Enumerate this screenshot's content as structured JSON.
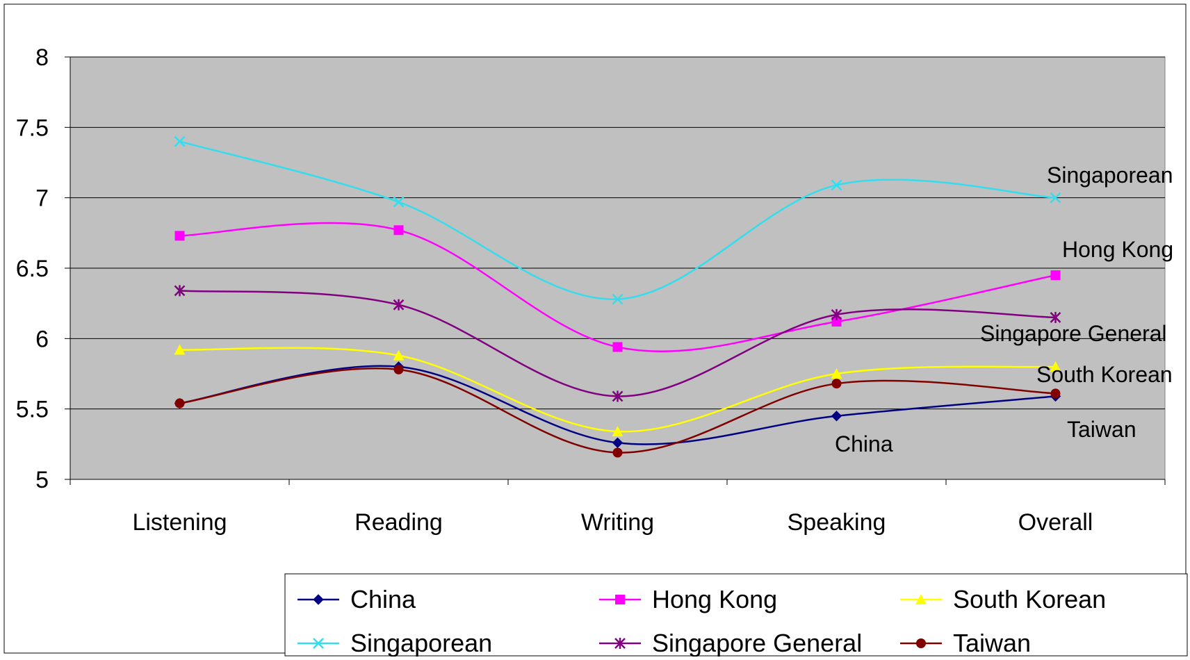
{
  "chart_data": {
    "type": "line",
    "title": "",
    "xlabel": "",
    "ylabel": "",
    "categories": [
      "Listening",
      "Reading",
      "Writing",
      "Speaking",
      "Overall"
    ],
    "ylim": [
      5,
      8
    ],
    "yticks": [
      "5",
      "5.5",
      "6",
      "6.5",
      "7",
      "7.5",
      "8"
    ],
    "grid": true,
    "smooth": true,
    "legend_position": "bottom",
    "series": [
      {
        "name": "China",
        "values": [
          5.54,
          5.8,
          5.26,
          5.45,
          5.59
        ],
        "color": "#000080",
        "marker": "diamond"
      },
      {
        "name": "Hong Kong",
        "values": [
          6.73,
          6.77,
          5.94,
          6.12,
          6.45
        ],
        "color": "#ff00ff",
        "marker": "square"
      },
      {
        "name": "South Korean",
        "values": [
          5.92,
          5.88,
          5.34,
          5.75,
          5.8
        ],
        "color": "#ffff00",
        "marker": "triangle"
      },
      {
        "name": "Singaporean",
        "values": [
          7.4,
          6.97,
          6.28,
          7.09,
          7.0
        ],
        "color": "#33ddee",
        "marker": "x"
      },
      {
        "name": "Singapore General",
        "values": [
          6.34,
          6.24,
          5.59,
          6.17,
          6.15
        ],
        "color": "#800080",
        "marker": "star"
      },
      {
        "name": "Taiwan",
        "values": [
          5.54,
          5.78,
          5.19,
          5.68,
          5.61
        ],
        "color": "#800000",
        "marker": "circle"
      }
    ],
    "annotations": [
      "Singaporean",
      "Hong Kong",
      "Singapore General",
      "South Korean",
      "Taiwan",
      "China"
    ]
  }
}
